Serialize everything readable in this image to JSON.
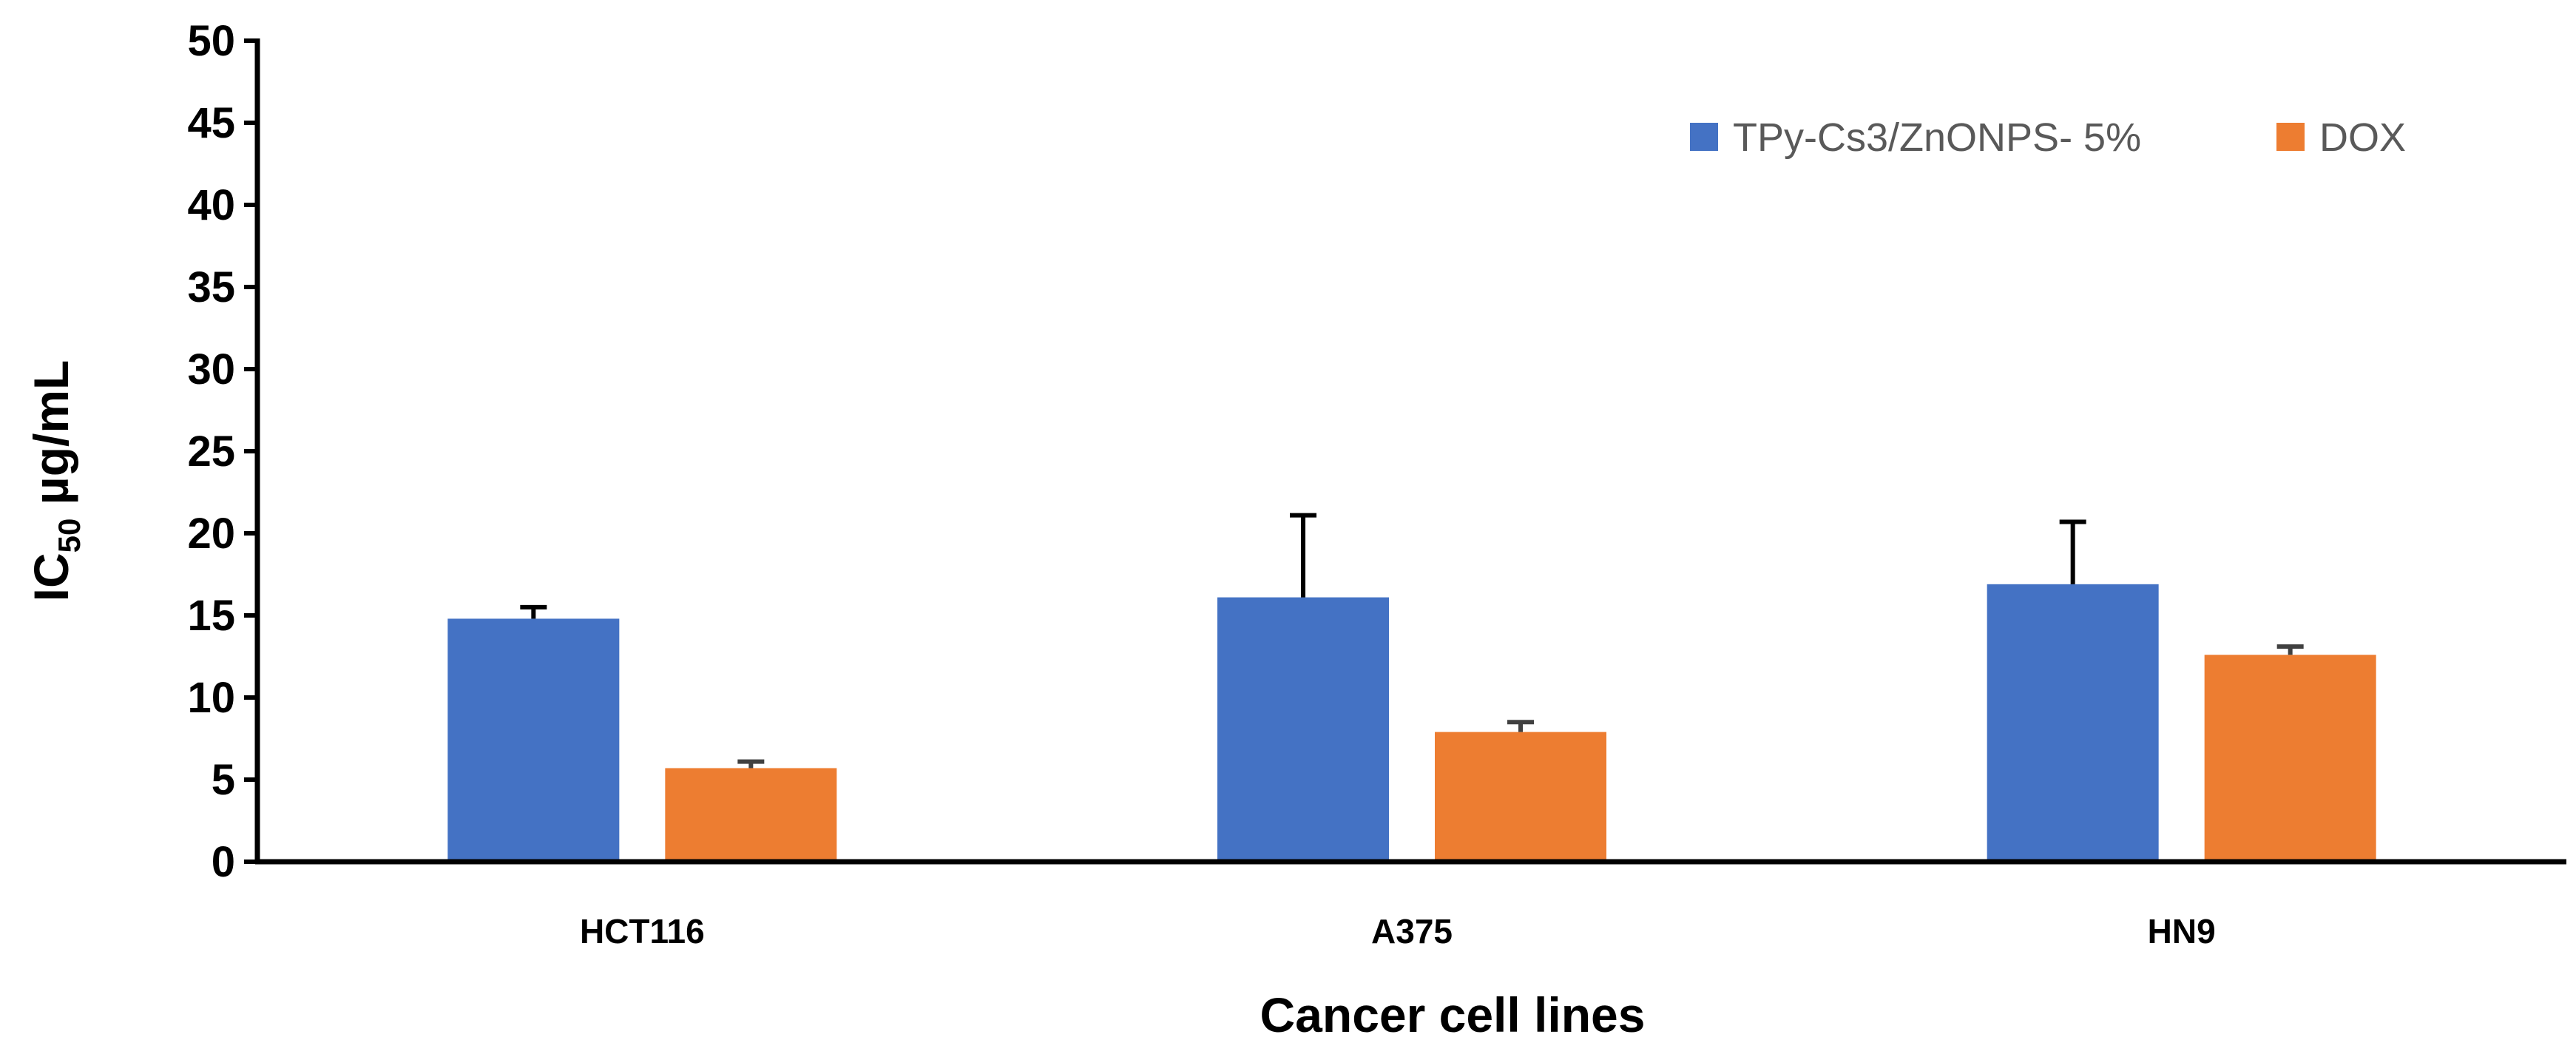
{
  "chart_data": {
    "type": "bar",
    "title": "",
    "xlabel": "Cancer cell lines",
    "ylabel": {
      "main": "IC",
      "subscript": "50",
      "unit": " µg/mL"
    },
    "ylim": [
      0,
      50
    ],
    "ytick_step": 5,
    "ytick_labels": [
      "0",
      "5",
      "10",
      "15",
      "20",
      "25",
      "30",
      "35",
      "40",
      "45",
      "50"
    ],
    "grid": false,
    "legend_position": "top-right",
    "categories": [
      "HCT116",
      "A375",
      "HN9"
    ],
    "series": [
      {
        "name": "TPy-Cs3/ZnONPS- 5%",
        "color": "#4472C4",
        "values": [
          14.8,
          16.1,
          16.9
        ],
        "errors": [
          0.7,
          5.0,
          3.8
        ],
        "error_color": "#000000"
      },
      {
        "name": "DOX",
        "color": "#ED7D31",
        "values": [
          5.7,
          7.9,
          12.6
        ],
        "errors": [
          0.4,
          0.6,
          0.5
        ],
        "error_color": "#404040"
      }
    ]
  }
}
